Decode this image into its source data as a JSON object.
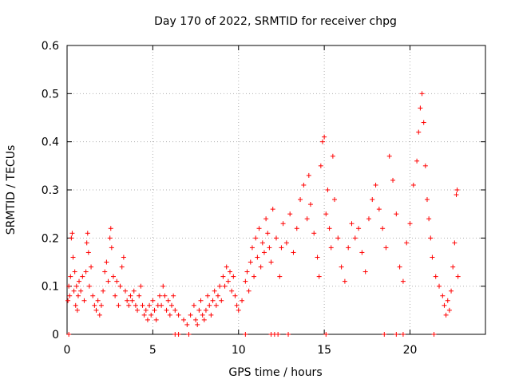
{
  "chart_data": {
    "type": "scatter",
    "title": "Day 170 of 2022, SRMTID for receiver chpg",
    "xlabel": "GPS time / hours",
    "ylabel": "SRMTID / TECUs",
    "xlim": [
      0,
      24.4
    ],
    "ylim": [
      0,
      0.6
    ],
    "xticks": [
      0,
      5,
      10,
      15,
      20
    ],
    "yticks": [
      0,
      0.1,
      0.2,
      0.3,
      0.4,
      0.5,
      0.6
    ],
    "xtick_labels": [
      "0",
      "5",
      "10",
      "15",
      "20"
    ],
    "ytick_labels": [
      "0",
      "0.1",
      "0.2",
      "0.3",
      "0.4",
      "0.5",
      "0.6"
    ],
    "grid": true,
    "marker": "plus",
    "series_color": "#ff0000",
    "points": [
      [
        0.05,
        0.07
      ],
      [
        0.1,
        0.1
      ],
      [
        0.15,
        0.08
      ],
      [
        0.2,
        0.12
      ],
      [
        0.25,
        0.2
      ],
      [
        0.3,
        0.21
      ],
      [
        0.35,
        0.16
      ],
      [
        0.4,
        0.09
      ],
      [
        0.45,
        0.13
      ],
      [
        0.5,
        0.06
      ],
      [
        0.55,
        0.1
      ],
      [
        0.6,
        0.05
      ],
      [
        0.65,
        0.08
      ],
      [
        0.7,
        0.11
      ],
      [
        0.8,
        0.09
      ],
      [
        0.9,
        0.12
      ],
      [
        1.0,
        0.07
      ],
      [
        1.1,
        0.13
      ],
      [
        1.15,
        0.19
      ],
      [
        1.2,
        0.21
      ],
      [
        1.25,
        0.17
      ],
      [
        1.3,
        0.1
      ],
      [
        1.4,
        0.14
      ],
      [
        1.5,
        0.08
      ],
      [
        1.6,
        0.06
      ],
      [
        1.7,
        0.05
      ],
      [
        1.8,
        0.07
      ],
      [
        1.9,
        0.04
      ],
      [
        2.0,
        0.06
      ],
      [
        2.1,
        0.09
      ],
      [
        2.2,
        0.13
      ],
      [
        2.3,
        0.15
      ],
      [
        2.4,
        0.11
      ],
      [
        2.5,
        0.2
      ],
      [
        2.55,
        0.22
      ],
      [
        2.6,
        0.18
      ],
      [
        2.7,
        0.12
      ],
      [
        2.8,
        0.08
      ],
      [
        2.9,
        0.11
      ],
      [
        3.0,
        0.06
      ],
      [
        3.1,
        0.1
      ],
      [
        3.2,
        0.14
      ],
      [
        3.3,
        0.16
      ],
      [
        3.4,
        0.09
      ],
      [
        3.5,
        0.07
      ],
      [
        3.6,
        0.06
      ],
      [
        3.7,
        0.08
      ],
      [
        3.8,
        0.07
      ],
      [
        3.9,
        0.09
      ],
      [
        4.0,
        0.06
      ],
      [
        4.1,
        0.05
      ],
      [
        4.2,
        0.08
      ],
      [
        4.3,
        0.1
      ],
      [
        4.4,
        0.06
      ],
      [
        4.5,
        0.04
      ],
      [
        4.6,
        0.05
      ],
      [
        4.7,
        0.03
      ],
      [
        4.8,
        0.06
      ],
      [
        4.9,
        0.04
      ],
      [
        5.0,
        0.07
      ],
      [
        5.1,
        0.05
      ],
      [
        5.2,
        0.03
      ],
      [
        5.3,
        0.06
      ],
      [
        5.4,
        0.08
      ],
      [
        5.5,
        0.06
      ],
      [
        5.6,
        0.1
      ],
      [
        5.7,
        0.08
      ],
      [
        5.8,
        0.05
      ],
      [
        5.9,
        0.07
      ],
      [
        6.0,
        0.04
      ],
      [
        6.1,
        0.06
      ],
      [
        6.2,
        0.08
      ],
      [
        6.3,
        0.05
      ],
      [
        6.5,
        0.04
      ],
      [
        6.8,
        0.03
      ],
      [
        7.0,
        0.02
      ],
      [
        7.2,
        0.04
      ],
      [
        7.4,
        0.06
      ],
      [
        7.5,
        0.03
      ],
      [
        7.6,
        0.02
      ],
      [
        7.7,
        0.05
      ],
      [
        7.8,
        0.07
      ],
      [
        7.9,
        0.04
      ],
      [
        8.0,
        0.03
      ],
      [
        8.1,
        0.05
      ],
      [
        8.2,
        0.08
      ],
      [
        8.3,
        0.06
      ],
      [
        8.4,
        0.04
      ],
      [
        8.5,
        0.07
      ],
      [
        8.6,
        0.09
      ],
      [
        8.7,
        0.06
      ],
      [
        8.8,
        0.08
      ],
      [
        8.9,
        0.1
      ],
      [
        9.0,
        0.07
      ],
      [
        9.1,
        0.12
      ],
      [
        9.2,
        0.1
      ],
      [
        9.3,
        0.14
      ],
      [
        9.4,
        0.11
      ],
      [
        9.5,
        0.13
      ],
      [
        9.6,
        0.09
      ],
      [
        9.7,
        0.12
      ],
      [
        9.8,
        0.08
      ],
      [
        9.9,
        0.06
      ],
      [
        10.0,
        0.05
      ],
      [
        10.2,
        0.07
      ],
      [
        10.4,
        0.11
      ],
      [
        10.5,
        0.13
      ],
      [
        10.6,
        0.09
      ],
      [
        10.7,
        0.15
      ],
      [
        10.8,
        0.18
      ],
      [
        10.9,
        0.12
      ],
      [
        11.0,
        0.2
      ],
      [
        11.1,
        0.16
      ],
      [
        11.2,
        0.22
      ],
      [
        11.3,
        0.14
      ],
      [
        11.4,
        0.19
      ],
      [
        11.5,
        0.17
      ],
      [
        11.6,
        0.24
      ],
      [
        11.7,
        0.21
      ],
      [
        11.8,
        0.18
      ],
      [
        11.9,
        0.15
      ],
      [
        12.0,
        0.26
      ],
      [
        12.2,
        0.2
      ],
      [
        12.4,
        0.12
      ],
      [
        12.5,
        0.18
      ],
      [
        12.6,
        0.23
      ],
      [
        12.8,
        0.19
      ],
      [
        13.0,
        0.25
      ],
      [
        13.2,
        0.17
      ],
      [
        13.4,
        0.22
      ],
      [
        13.6,
        0.28
      ],
      [
        13.8,
        0.31
      ],
      [
        14.0,
        0.24
      ],
      [
        14.1,
        0.33
      ],
      [
        14.2,
        0.27
      ],
      [
        14.4,
        0.21
      ],
      [
        14.6,
        0.16
      ],
      [
        14.7,
        0.12
      ],
      [
        14.8,
        0.35
      ],
      [
        14.9,
        0.4
      ],
      [
        15.0,
        0.41
      ],
      [
        15.1,
        0.25
      ],
      [
        15.2,
        0.3
      ],
      [
        15.3,
        0.22
      ],
      [
        15.4,
        0.18
      ],
      [
        15.5,
        0.37
      ],
      [
        15.6,
        0.28
      ],
      [
        15.8,
        0.2
      ],
      [
        16.0,
        0.14
      ],
      [
        16.2,
        0.11
      ],
      [
        16.4,
        0.18
      ],
      [
        16.6,
        0.23
      ],
      [
        16.8,
        0.2
      ],
      [
        17.0,
        0.22
      ],
      [
        17.2,
        0.17
      ],
      [
        17.4,
        0.13
      ],
      [
        17.6,
        0.24
      ],
      [
        17.8,
        0.28
      ],
      [
        18.0,
        0.31
      ],
      [
        18.2,
        0.26
      ],
      [
        18.4,
        0.22
      ],
      [
        18.6,
        0.18
      ],
      [
        18.8,
        0.37
      ],
      [
        19.0,
        0.32
      ],
      [
        19.2,
        0.25
      ],
      [
        19.4,
        0.14
      ],
      [
        19.6,
        0.11
      ],
      [
        19.8,
        0.19
      ],
      [
        20.0,
        0.23
      ],
      [
        20.2,
        0.31
      ],
      [
        20.4,
        0.36
      ],
      [
        20.5,
        0.42
      ],
      [
        20.6,
        0.47
      ],
      [
        20.7,
        0.5
      ],
      [
        20.8,
        0.44
      ],
      [
        20.9,
        0.35
      ],
      [
        21.0,
        0.28
      ],
      [
        21.1,
        0.24
      ],
      [
        21.2,
        0.2
      ],
      [
        21.3,
        0.16
      ],
      [
        21.5,
        0.12
      ],
      [
        21.7,
        0.1
      ],
      [
        21.9,
        0.08
      ],
      [
        22.0,
        0.06
      ],
      [
        22.1,
        0.04
      ],
      [
        22.2,
        0.07
      ],
      [
        22.3,
        0.05
      ],
      [
        22.4,
        0.09
      ],
      [
        22.5,
        0.14
      ],
      [
        22.6,
        0.19
      ],
      [
        22.7,
        0.29
      ],
      [
        22.75,
        0.3
      ],
      [
        22.8,
        0.12
      ]
    ],
    "edge_points_x": [
      0.1,
      6.3,
      6.5,
      7.1,
      10.4,
      11.9,
      12.1,
      12.3,
      12.9,
      15.1,
      18.5,
      19.2,
      19.6,
      21.4
    ],
    "edge_value": 0
  }
}
